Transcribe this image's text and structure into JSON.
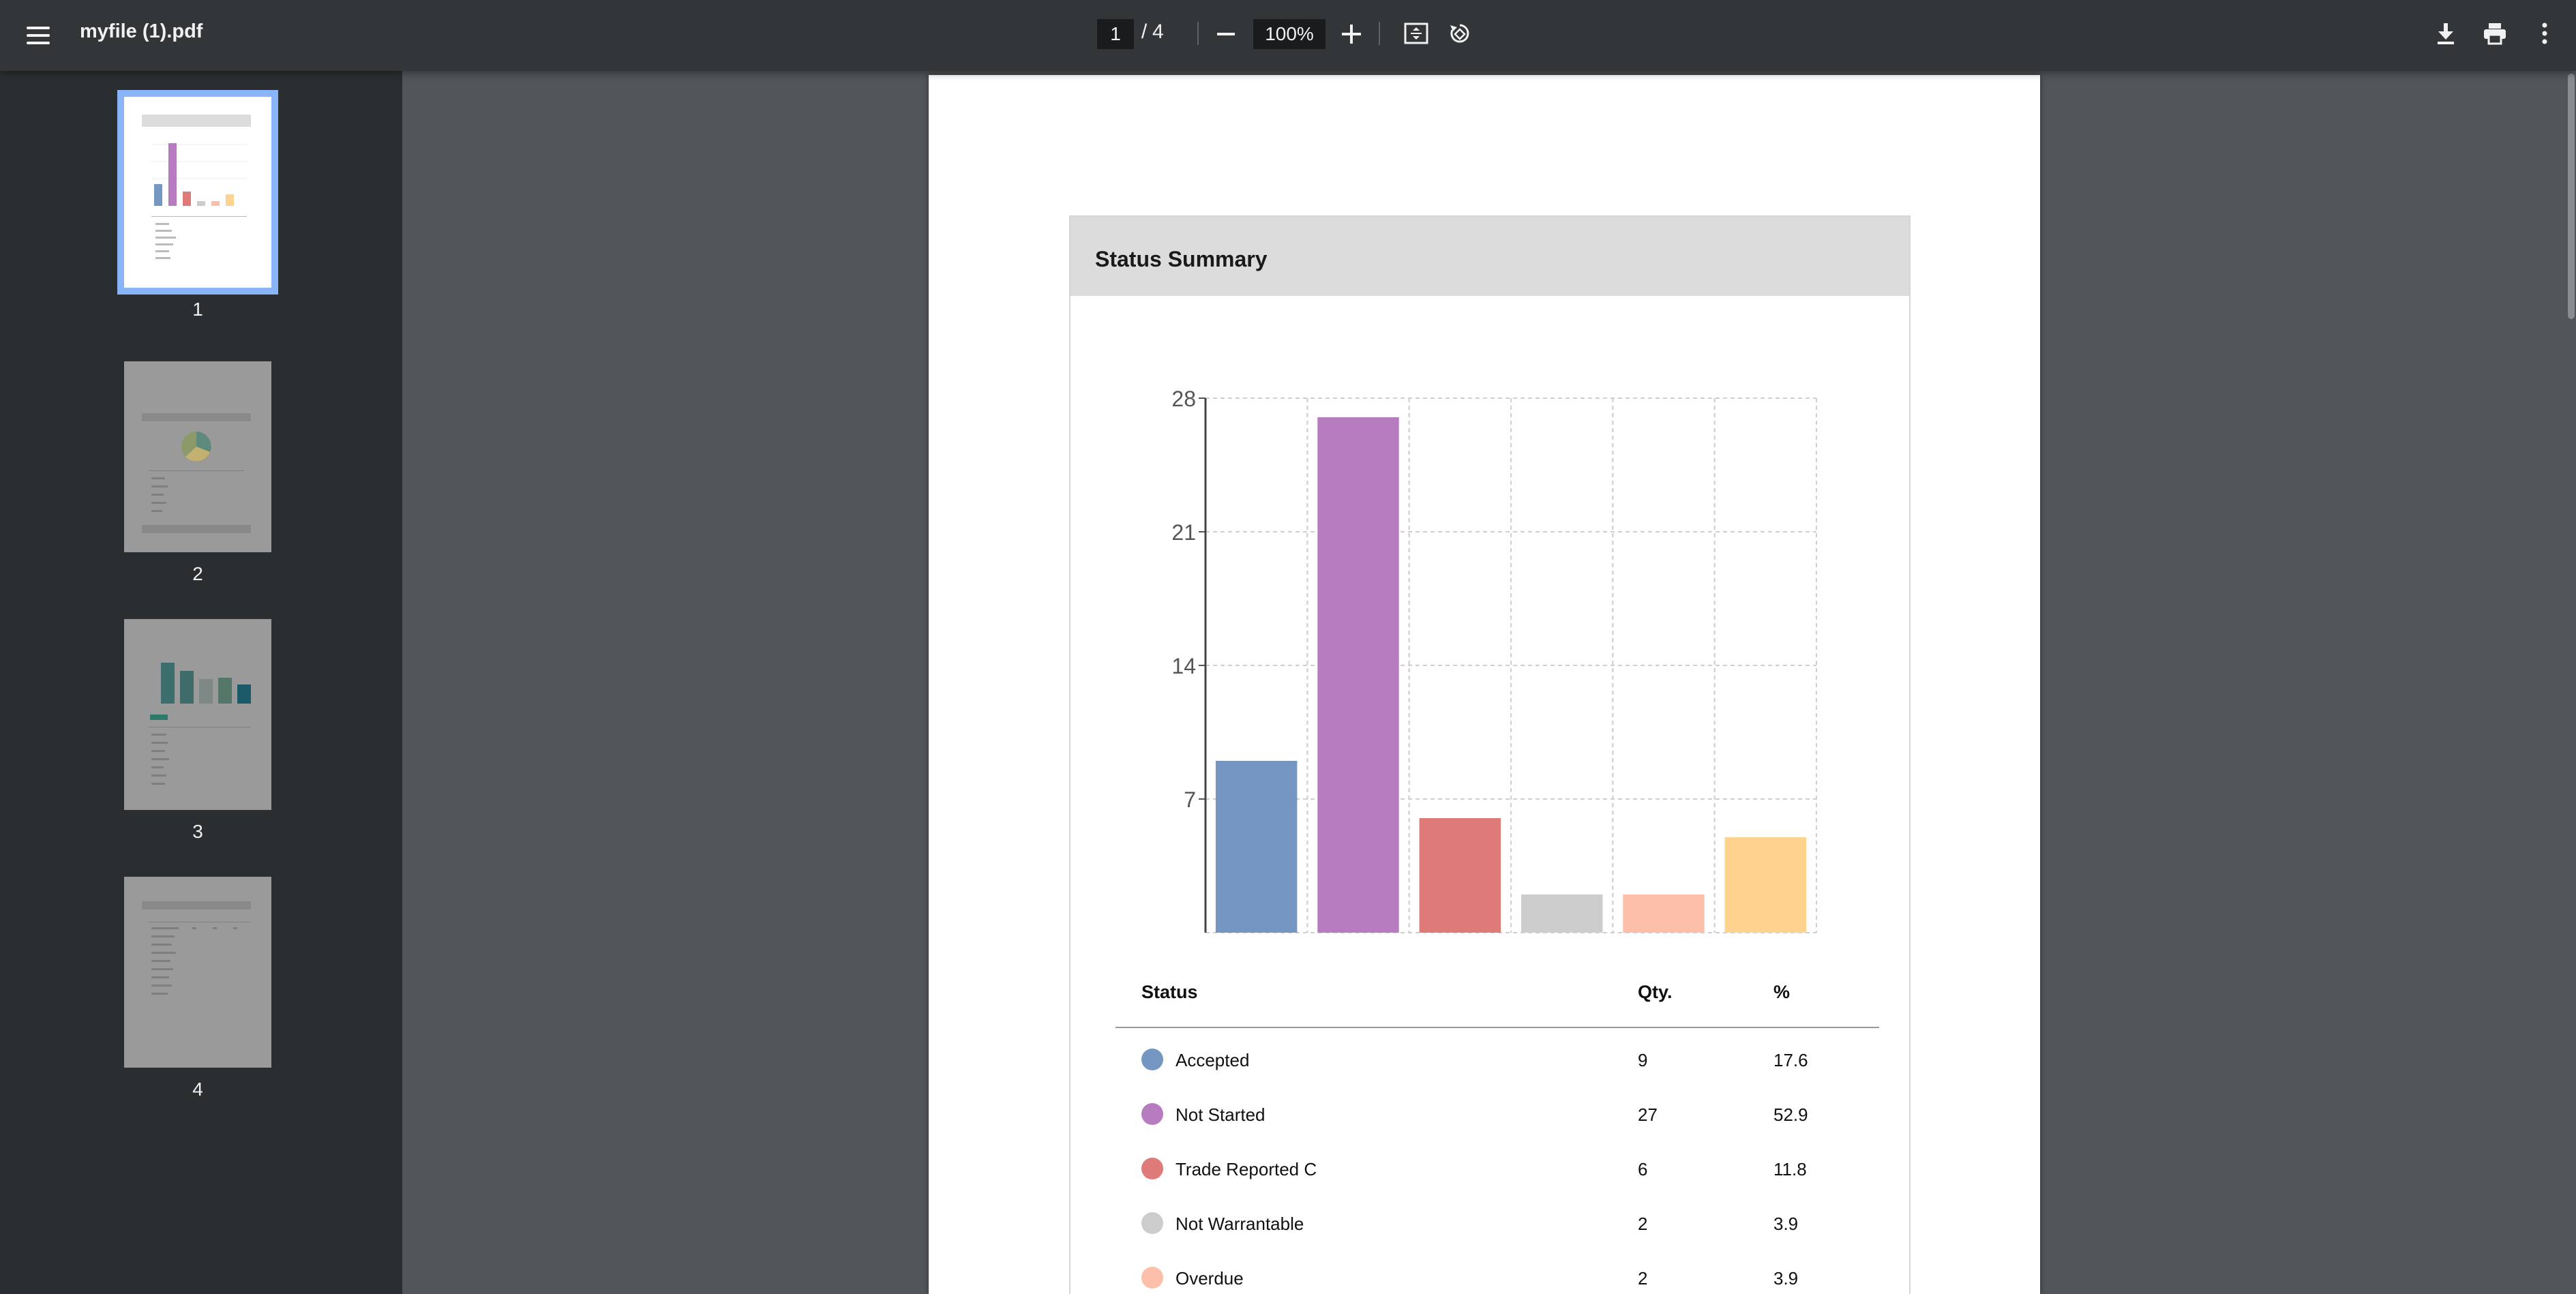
{
  "toolbar": {
    "file_title": "myfile (1).pdf",
    "page_current": "1",
    "page_separator": "/",
    "page_total": "4",
    "zoom": "100%",
    "icons": [
      "menu-icon",
      "minus-icon",
      "plus-icon",
      "fit-page-icon",
      "rotate-icon",
      "download-icon",
      "print-icon",
      "more-vert-icon"
    ]
  },
  "sidebar": {
    "thumbnails": [
      {
        "label": "1",
        "active": true
      },
      {
        "label": "2",
        "active": false
      },
      {
        "label": "3",
        "active": false
      },
      {
        "label": "4",
        "active": false
      }
    ]
  },
  "document": {
    "card_title": "Status Summary",
    "table": {
      "headers": [
        "Status",
        "Qty.",
        "%"
      ],
      "rows": [
        {
          "status": "Accepted",
          "qty": "9",
          "pct": "17.6",
          "color": "#7596c0"
        },
        {
          "status": "Not Started",
          "qty": "27",
          "pct": "52.9",
          "color": "#b77cc0"
        },
        {
          "status": "Trade Reported C",
          "qty": "6",
          "pct": "11.8",
          "color": "#de7a78"
        },
        {
          "status": "Not Warrantable",
          "qty": "2",
          "pct": "3.9",
          "color": "#cccccc"
        },
        {
          "status": "Overdue",
          "qty": "2",
          "pct": "3.9",
          "color": "#fcc0aa"
        }
      ]
    }
  },
  "chart_data": {
    "type": "bar",
    "categories": [
      "Accepted",
      "Not Started",
      "Trade Reported C",
      "Not Warrantable",
      "Overdue",
      ""
    ],
    "values": [
      9,
      27,
      6,
      2,
      2,
      5
    ],
    "colors": [
      "#7596c0",
      "#b77cc0",
      "#de7a78",
      "#cccccc",
      "#fcc0aa",
      "#fdd38f"
    ],
    "ylim": [
      0,
      28
    ],
    "yticks": [
      "28",
      "21",
      "14",
      "7"
    ],
    "grid": true,
    "title": "",
    "xlabel": "",
    "ylabel": ""
  }
}
